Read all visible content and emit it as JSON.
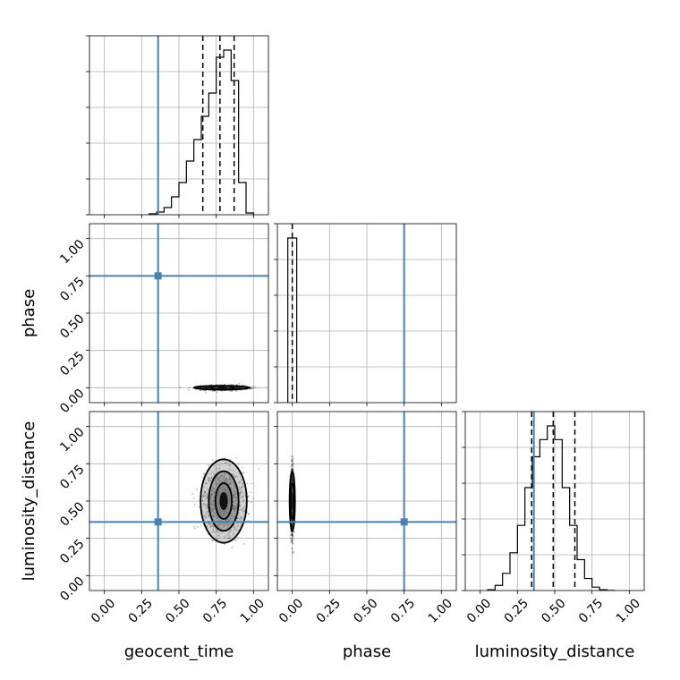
{
  "chart_data": {
    "type": "corner",
    "parameters": [
      "geocent_time",
      "phase",
      "luminosity_distance"
    ],
    "axis_labels": {
      "geocent_time": "geocent_time",
      "phase": "phase",
      "luminosity_distance": "luminosity_distance"
    },
    "range": [
      -0.1,
      1.1
    ],
    "ticks": [
      0.0,
      0.25,
      0.5,
      0.75,
      1.0
    ],
    "tick_labels": [
      "0.00",
      "0.25",
      "0.50",
      "0.75",
      "1.00"
    ],
    "grid": true,
    "truths": {
      "geocent_time": 0.36,
      "phase": 0.75,
      "luminosity_distance": 0.36
    },
    "truth_color": "#4682b4",
    "quantiles": {
      "geocent_time": [
        0.66,
        0.775,
        0.87
      ],
      "phase": [
        0.0
      ],
      "luminosity_distance": [
        0.345,
        0.49,
        0.635
      ]
    },
    "histograms": {
      "geocent_time": {
        "bin_edges": [
          0.3,
          0.35,
          0.4,
          0.45,
          0.5,
          0.55,
          0.6,
          0.65,
          0.7,
          0.75,
          0.8,
          0.85,
          0.9,
          0.95,
          1.0
        ],
        "counts": [
          0.005,
          0.015,
          0.04,
          0.1,
          0.18,
          0.3,
          0.42,
          0.55,
          0.68,
          0.88,
          0.92,
          0.75,
          0.18,
          0.01
        ]
      },
      "phase": {
        "bin_edges": [
          -0.03,
          0.0,
          0.03
        ],
        "counts": [
          0.92,
          0.92
        ]
      },
      "luminosity_distance": {
        "bin_edges": [
          0.05,
          0.1,
          0.15,
          0.2,
          0.25,
          0.3,
          0.35,
          0.4,
          0.45,
          0.5,
          0.55,
          0.6,
          0.65,
          0.7,
          0.75,
          0.8,
          0.85,
          0.9
        ],
        "counts": [
          0.005,
          0.03,
          0.1,
          0.22,
          0.38,
          0.6,
          0.78,
          0.88,
          0.96,
          0.88,
          0.6,
          0.38,
          0.18,
          0.07,
          0.02,
          0.005,
          0.001
        ]
      }
    },
    "panels_2d": [
      {
        "x": "geocent_time",
        "y": "phase",
        "center": [
          0.79,
          0.0
        ],
        "spread": [
          0.07,
          0.008
        ],
        "contours": [
          {
            "level": "inner",
            "rx": 0.07,
            "ry": 0.012
          },
          {
            "level": "outer",
            "rx": 0.19,
            "ry": 0.012
          }
        ]
      },
      {
        "x": "geocent_time",
        "y": "luminosity_distance",
        "center": [
          0.8,
          0.5
        ],
        "spread": [
          0.065,
          0.1
        ],
        "contours": [
          {
            "level": "inner",
            "rx": 0.055,
            "ry": 0.12
          },
          {
            "level": "middle",
            "rx": 0.1,
            "ry": 0.2
          },
          {
            "level": "outer",
            "rx": 0.155,
            "ry": 0.28
          }
        ]
      },
      {
        "x": "phase",
        "y": "luminosity_distance",
        "center": [
          0.0,
          0.5
        ],
        "spread": [
          0.005,
          0.1
        ],
        "contours": [
          {
            "level": "inner",
            "rx": 0.012,
            "ry": 0.12
          },
          {
            "level": "outer",
            "rx": 0.018,
            "ry": 0.2
          }
        ]
      }
    ]
  }
}
